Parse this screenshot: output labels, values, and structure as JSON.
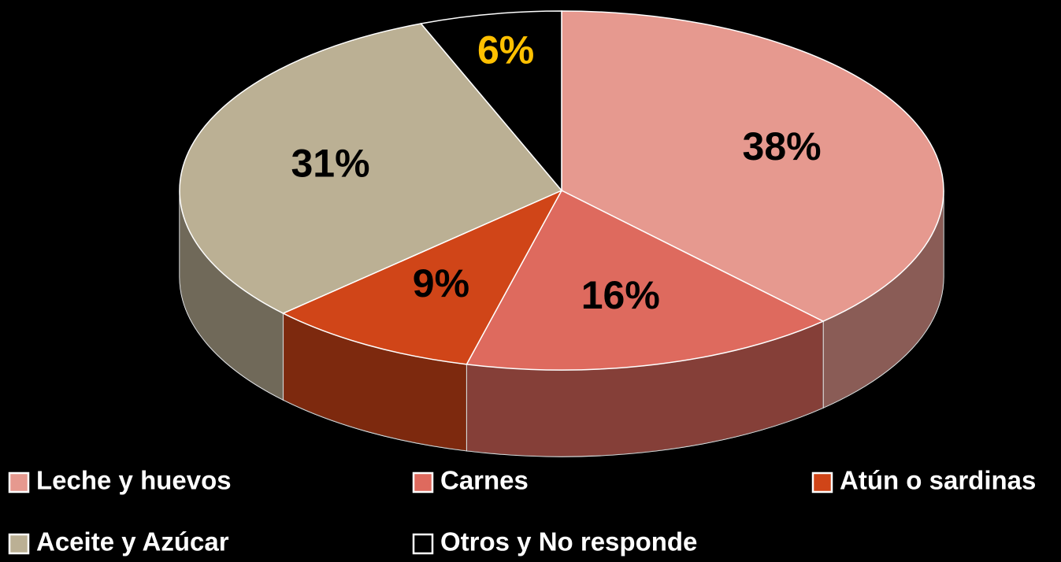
{
  "chart_data": {
    "type": "pie",
    "categories": [
      "Leche y huevos",
      "Carnes",
      "Atún o sardinas",
      "Aceite y Azúcar",
      "Otros y No responde"
    ],
    "values": [
      38,
      16,
      9,
      31,
      6
    ],
    "value_labels": [
      "38%",
      "16%",
      "9%",
      "31%",
      "6%"
    ],
    "colors": [
      "#e6998f",
      "#de6a5e",
      "#d04518",
      "#bbb094",
      "#000000"
    ],
    "label_colors": [
      "#000000",
      "#000000",
      "#000000",
      "#000000",
      "#ffc000"
    ]
  }
}
